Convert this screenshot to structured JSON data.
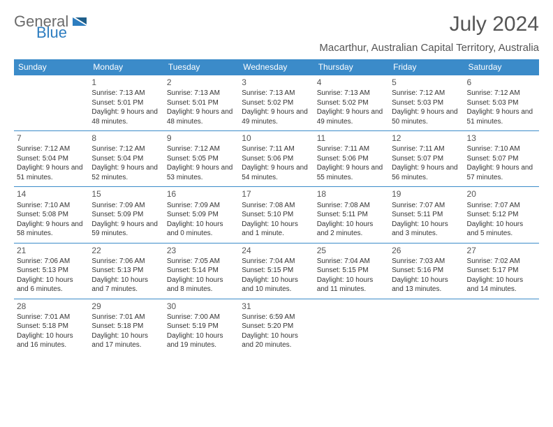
{
  "brand": {
    "part1": "General",
    "part2": "Blue"
  },
  "title": "July 2024",
  "subtitle": "Macarthur, Australian Capital Territory, Australia",
  "colors": {
    "header_bg": "#3b8bc9",
    "header_text": "#ffffff",
    "cell_border": "#3b8bc9",
    "brand_gray": "#6b6b6b",
    "brand_blue": "#2d7dc0",
    "text": "#333333",
    "title_color": "#555555"
  },
  "weekdays": [
    "Sunday",
    "Monday",
    "Tuesday",
    "Wednesday",
    "Thursday",
    "Friday",
    "Saturday"
  ],
  "weeks": [
    [
      null,
      {
        "n": "1",
        "sr": "7:13 AM",
        "ss": "5:01 PM",
        "dl": "9 hours and 48 minutes."
      },
      {
        "n": "2",
        "sr": "7:13 AM",
        "ss": "5:01 PM",
        "dl": "9 hours and 48 minutes."
      },
      {
        "n": "3",
        "sr": "7:13 AM",
        "ss": "5:02 PM",
        "dl": "9 hours and 49 minutes."
      },
      {
        "n": "4",
        "sr": "7:13 AM",
        "ss": "5:02 PM",
        "dl": "9 hours and 49 minutes."
      },
      {
        "n": "5",
        "sr": "7:12 AM",
        "ss": "5:03 PM",
        "dl": "9 hours and 50 minutes."
      },
      {
        "n": "6",
        "sr": "7:12 AM",
        "ss": "5:03 PM",
        "dl": "9 hours and 51 minutes."
      }
    ],
    [
      {
        "n": "7",
        "sr": "7:12 AM",
        "ss": "5:04 PM",
        "dl": "9 hours and 51 minutes."
      },
      {
        "n": "8",
        "sr": "7:12 AM",
        "ss": "5:04 PM",
        "dl": "9 hours and 52 minutes."
      },
      {
        "n": "9",
        "sr": "7:12 AM",
        "ss": "5:05 PM",
        "dl": "9 hours and 53 minutes."
      },
      {
        "n": "10",
        "sr": "7:11 AM",
        "ss": "5:06 PM",
        "dl": "9 hours and 54 minutes."
      },
      {
        "n": "11",
        "sr": "7:11 AM",
        "ss": "5:06 PM",
        "dl": "9 hours and 55 minutes."
      },
      {
        "n": "12",
        "sr": "7:11 AM",
        "ss": "5:07 PM",
        "dl": "9 hours and 56 minutes."
      },
      {
        "n": "13",
        "sr": "7:10 AM",
        "ss": "5:07 PM",
        "dl": "9 hours and 57 minutes."
      }
    ],
    [
      {
        "n": "14",
        "sr": "7:10 AM",
        "ss": "5:08 PM",
        "dl": "9 hours and 58 minutes."
      },
      {
        "n": "15",
        "sr": "7:09 AM",
        "ss": "5:09 PM",
        "dl": "9 hours and 59 minutes."
      },
      {
        "n": "16",
        "sr": "7:09 AM",
        "ss": "5:09 PM",
        "dl": "10 hours and 0 minutes."
      },
      {
        "n": "17",
        "sr": "7:08 AM",
        "ss": "5:10 PM",
        "dl": "10 hours and 1 minute."
      },
      {
        "n": "18",
        "sr": "7:08 AM",
        "ss": "5:11 PM",
        "dl": "10 hours and 2 minutes."
      },
      {
        "n": "19",
        "sr": "7:07 AM",
        "ss": "5:11 PM",
        "dl": "10 hours and 3 minutes."
      },
      {
        "n": "20",
        "sr": "7:07 AM",
        "ss": "5:12 PM",
        "dl": "10 hours and 5 minutes."
      }
    ],
    [
      {
        "n": "21",
        "sr": "7:06 AM",
        "ss": "5:13 PM",
        "dl": "10 hours and 6 minutes."
      },
      {
        "n": "22",
        "sr": "7:06 AM",
        "ss": "5:13 PM",
        "dl": "10 hours and 7 minutes."
      },
      {
        "n": "23",
        "sr": "7:05 AM",
        "ss": "5:14 PM",
        "dl": "10 hours and 8 minutes."
      },
      {
        "n": "24",
        "sr": "7:04 AM",
        "ss": "5:15 PM",
        "dl": "10 hours and 10 minutes."
      },
      {
        "n": "25",
        "sr": "7:04 AM",
        "ss": "5:15 PM",
        "dl": "10 hours and 11 minutes."
      },
      {
        "n": "26",
        "sr": "7:03 AM",
        "ss": "5:16 PM",
        "dl": "10 hours and 13 minutes."
      },
      {
        "n": "27",
        "sr": "7:02 AM",
        "ss": "5:17 PM",
        "dl": "10 hours and 14 minutes."
      }
    ],
    [
      {
        "n": "28",
        "sr": "7:01 AM",
        "ss": "5:18 PM",
        "dl": "10 hours and 16 minutes."
      },
      {
        "n": "29",
        "sr": "7:01 AM",
        "ss": "5:18 PM",
        "dl": "10 hours and 17 minutes."
      },
      {
        "n": "30",
        "sr": "7:00 AM",
        "ss": "5:19 PM",
        "dl": "10 hours and 19 minutes."
      },
      {
        "n": "31",
        "sr": "6:59 AM",
        "ss": "5:20 PM",
        "dl": "10 hours and 20 minutes."
      },
      null,
      null,
      null
    ]
  ],
  "labels": {
    "sunrise": "Sunrise: ",
    "sunset": "Sunset: ",
    "daylight": "Daylight: "
  }
}
